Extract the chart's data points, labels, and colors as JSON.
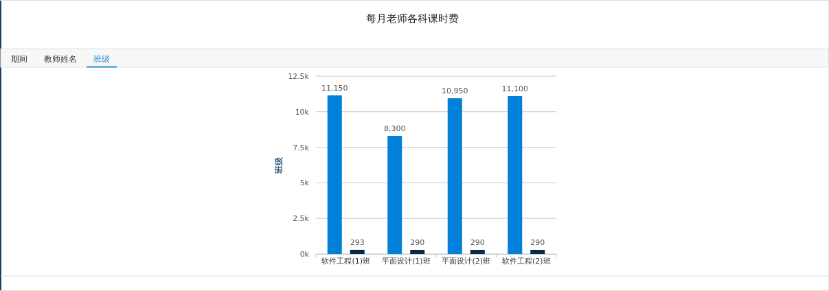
{
  "chart_data": {
    "type": "bar",
    "title": "每月老师各科课时费",
    "ylabel": "班级",
    "annotations": [
      "期间",
      "教师姓名",
      "班级"
    ],
    "categories": [
      "软件工程(1)班",
      "平面设计(1)班",
      "平面设计(2)班",
      "软件工程(2)班"
    ],
    "series": [
      {
        "color": "#0080d8",
        "values": [
          11150,
          8300,
          10950,
          11100
        ],
        "value_labels": [
          "11,150",
          "8,300",
          "10,950",
          "11,100"
        ]
      },
      {
        "color": "#0c2840",
        "values": [
          293,
          290,
          290,
          290
        ],
        "value_labels": [
          "293",
          "290",
          "290",
          "290"
        ]
      }
    ],
    "ylim": [
      0,
      12500
    ],
    "yticks": [
      {
        "value": 0,
        "label": "0k"
      },
      {
        "value": 2500,
        "label": "2.5k"
      },
      {
        "value": 5000,
        "label": "5k"
      },
      {
        "value": 7500,
        "label": "7.5k"
      },
      {
        "value": 10000,
        "label": "10k"
      },
      {
        "value": 12500,
        "label": "12.5k"
      }
    ],
    "grid": "y"
  }
}
